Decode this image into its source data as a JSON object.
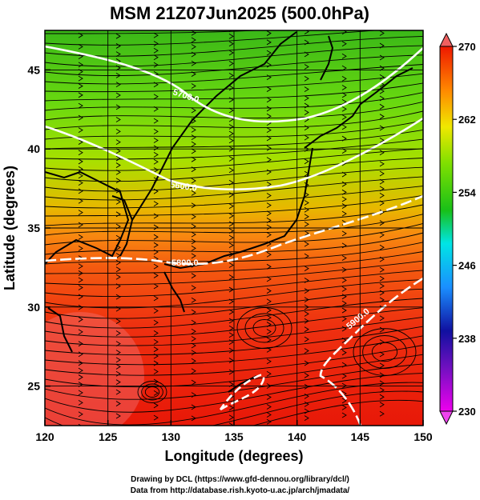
{
  "title": "MSM 21Z07Jun2025 (500.0hPa)",
  "x_axis": {
    "label": "Longitude (degrees)",
    "range": [
      120,
      150
    ],
    "ticks": [
      "120",
      "125",
      "130",
      "135",
      "140",
      "145",
      "150"
    ]
  },
  "y_axis": {
    "label": "Latitude  (degrees)",
    "range": [
      22.5,
      47.5
    ],
    "ticks": [
      "25",
      "30",
      "35",
      "40",
      "45"
    ]
  },
  "colorbar": {
    "range": [
      230,
      270
    ],
    "ticks": [
      "230",
      "238",
      "246",
      "254",
      "262",
      "270"
    ]
  },
  "contours": [
    {
      "label": "5700.0"
    },
    {
      "label": "5800.0"
    },
    {
      "label": "5900.0"
    },
    {
      "label": "5600.0"
    }
  ],
  "credits": {
    "line1": "Drawing by DCL (https://www.gfd-dennou.org/library/dcl/)",
    "line2": "Data from http://database.rish.kyoto-u.ac.jp/arch/jmadata/"
  },
  "colors": {
    "colormap": [
      "#ee00ee",
      "#1010a0",
      "#1a8fff",
      "#00e5e5",
      "#18c018",
      "#80e000",
      "#f0e800",
      "#ff8800",
      "#ee1800"
    ],
    "contour_line": "#ffffff",
    "coast": "#000000",
    "streamline": "#000000"
  }
}
